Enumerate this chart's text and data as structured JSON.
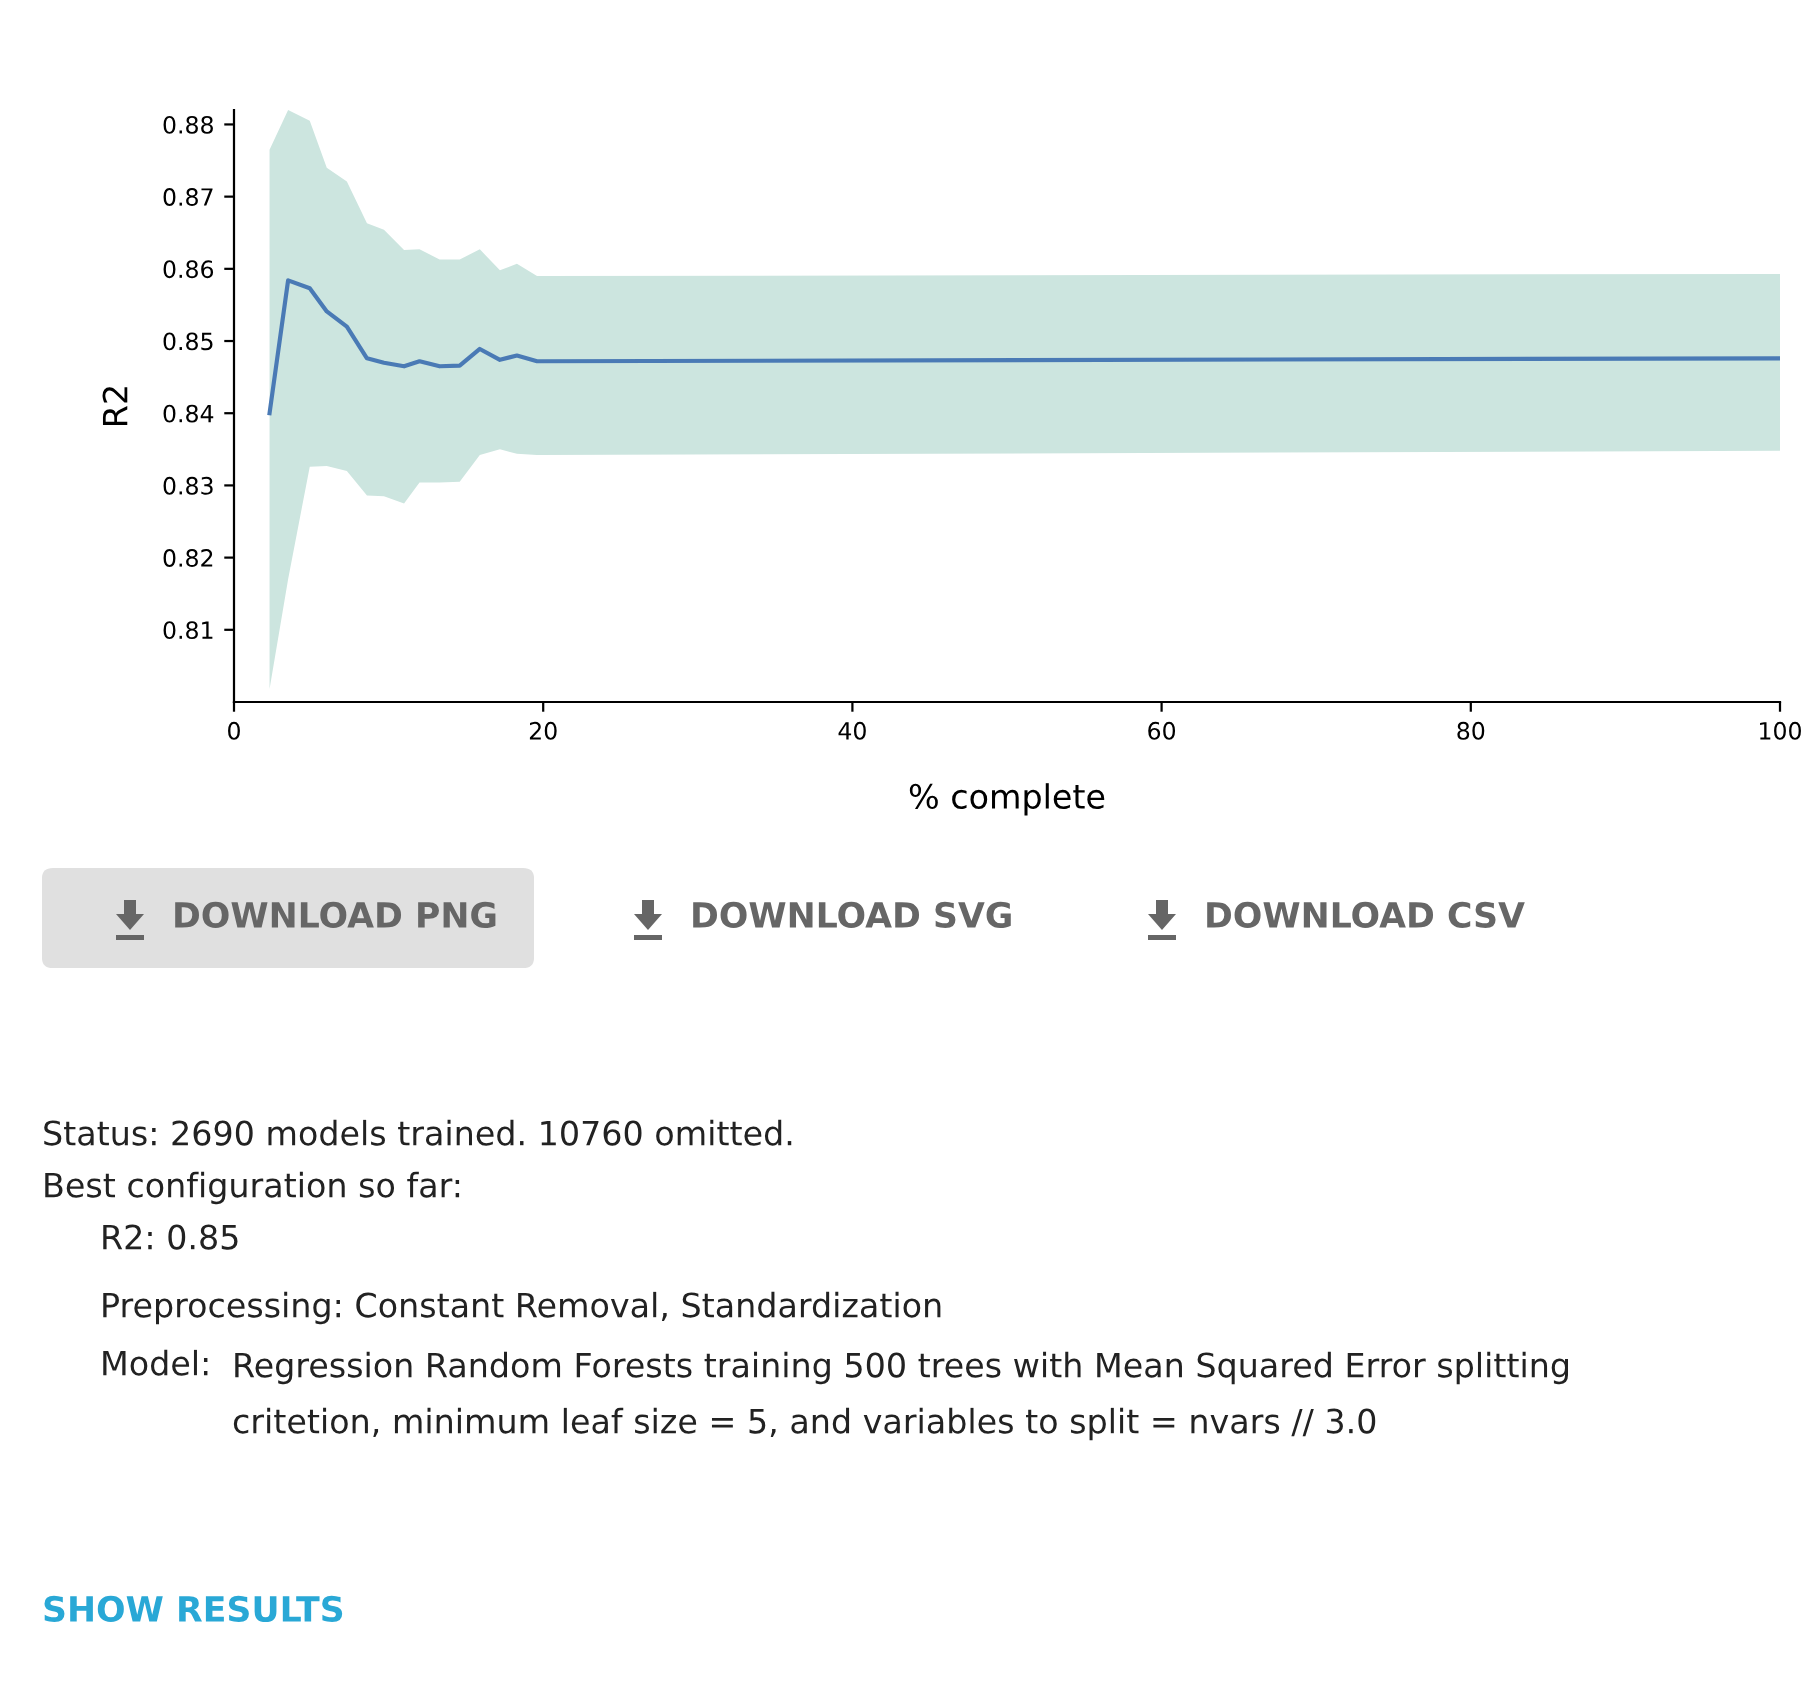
{
  "chart_data": {
    "type": "line",
    "xlabel": "% complete",
    "ylabel": "R2",
    "xlim": [
      0,
      100
    ],
    "xticks": [
      0,
      20,
      40,
      60,
      80,
      100
    ],
    "ylim": [
      0.8,
      0.882
    ],
    "yticks": [
      0.81,
      0.82,
      0.83,
      0.84,
      0.85,
      0.86,
      0.87,
      0.88
    ],
    "grid": false,
    "marker": "none",
    "line_style": "solid",
    "series": [
      {
        "color": "#4a7ab5",
        "x": [
          2.3,
          3.5,
          4.9,
          6.0,
          7.3,
          8.6,
          9.7,
          11.0,
          12.0,
          13.3,
          14.6,
          15.9,
          17.2,
          18.3,
          19.6,
          100
        ],
        "values": [
          0.84,
          0.8584,
          0.8573,
          0.8541,
          0.852,
          0.8476,
          0.847,
          0.8465,
          0.8472,
          0.8465,
          0.8466,
          0.8489,
          0.8474,
          0.848,
          0.8472,
          0.8476
        ],
        "lower": [
          0.8018,
          0.817,
          0.8326,
          0.8327,
          0.832,
          0.8286,
          0.8285,
          0.8275,
          0.8304,
          0.8304,
          0.8305,
          0.8342,
          0.835,
          0.8344,
          0.8342,
          0.8348
        ],
        "upper": [
          0.8765,
          0.882,
          0.8805,
          0.874,
          0.8721,
          0.8663,
          0.8654,
          0.8626,
          0.8627,
          0.8613,
          0.8613,
          0.8627,
          0.8598,
          0.8607,
          0.859,
          0.8593
        ]
      }
    ],
    "annotations": [
      "DOWNLOAD PNG",
      "DOWNLOAD SVG",
      "DOWNLOAD CSV",
      "Status: 2690 models trained. 10760 omitted.",
      "Best configuration so far:",
      "R2: 0.85",
      "Preprocessing: Constant Removal, Standardization",
      "Model:",
      "Regression Random Forests training 500 trees with Mean Squared Error splitting",
      "critetion, minimum leaf size = 5, and variables to split = nvars // 3.0",
      "SHOW RESULTS"
    ]
  }
}
